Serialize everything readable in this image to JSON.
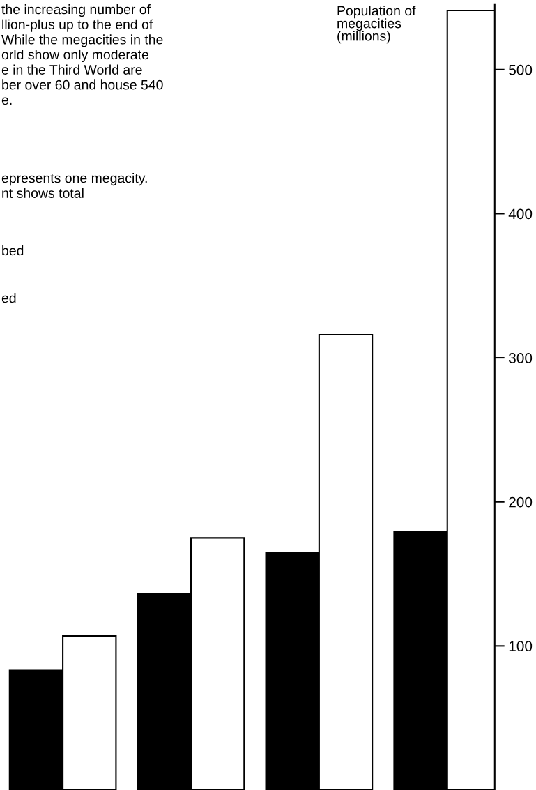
{
  "chart_data": {
    "type": "bar",
    "ylabel": "Population of\nmegacities\n(millions)",
    "categories": [
      null,
      null,
      null,
      null
    ],
    "series": [
      {
        "color": "#000000",
        "values": [
          83,
          136,
          165,
          179
        ]
      },
      {
        "color": "#ffffff",
        "values": [
          107,
          175,
          316,
          541
        ]
      }
    ],
    "ylim": [
      0,
      545
    ],
    "yticks": [
      100,
      200,
      300,
      400,
      500
    ],
    "grid": false,
    "legend": false,
    "tick_labels": "y",
    "annotations": [
      "the increasing number of\nllion-plus up to the end of\nWhile the megacities in the\norld show only moderate\ne in the Third World are\nber over 60 and house 540\ne.",
      "epresents one megacity.\nnt shows total",
      "bed",
      "ed"
    ]
  }
}
